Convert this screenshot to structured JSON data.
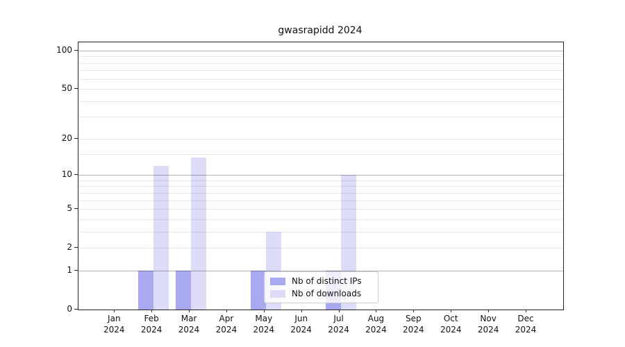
{
  "figure": {
    "title": "gwasrapidd 2024"
  },
  "chart_data": {
    "type": "bar",
    "title": "gwasrapidd 2024",
    "categories": [
      "Jan",
      "Feb",
      "Mar",
      "Apr",
      "May",
      "Jun",
      "Jul",
      "Aug",
      "Sep",
      "Oct",
      "Nov",
      "Dec"
    ],
    "x_year_label": "2024",
    "series": [
      {
        "name": "Nb of distinct IPs",
        "color": "#a8a9f0",
        "values": [
          0,
          1,
          1,
          0,
          1,
          0,
          1,
          0,
          0,
          0,
          0,
          0
        ]
      },
      {
        "name": "Nb of downloads",
        "color": "#dcdcf9",
        "values": [
          0,
          12,
          14,
          0,
          3,
          0,
          10,
          0,
          0,
          0,
          0,
          0
        ]
      }
    ],
    "y_axis": {
      "scale": "log10(1+x)",
      "tick_labels": [
        0,
        1,
        2,
        5,
        10,
        20,
        50,
        100
      ],
      "major_gridlines": [
        1,
        10,
        100
      ],
      "minor_gridlines": [
        2,
        3,
        4,
        5,
        6,
        7,
        8,
        9,
        15,
        20,
        30,
        40,
        50,
        60,
        70,
        80,
        90
      ],
      "ylim": [
        0,
        115
      ]
    },
    "legend": {
      "position": "lower center inside",
      "entries": [
        "Nb of distinct IPs",
        "Nb of downloads"
      ]
    },
    "grid": true
  },
  "colors": {
    "distinct_ips": "#a8a9f0",
    "downloads": "#dcdcf9",
    "axis": "#222222",
    "grid_major": "rgba(0,0,0,0.30)",
    "grid_minor": "rgba(0,0,0,0.085)",
    "legend_border": "#cccccc",
    "background": "#ffffff"
  }
}
